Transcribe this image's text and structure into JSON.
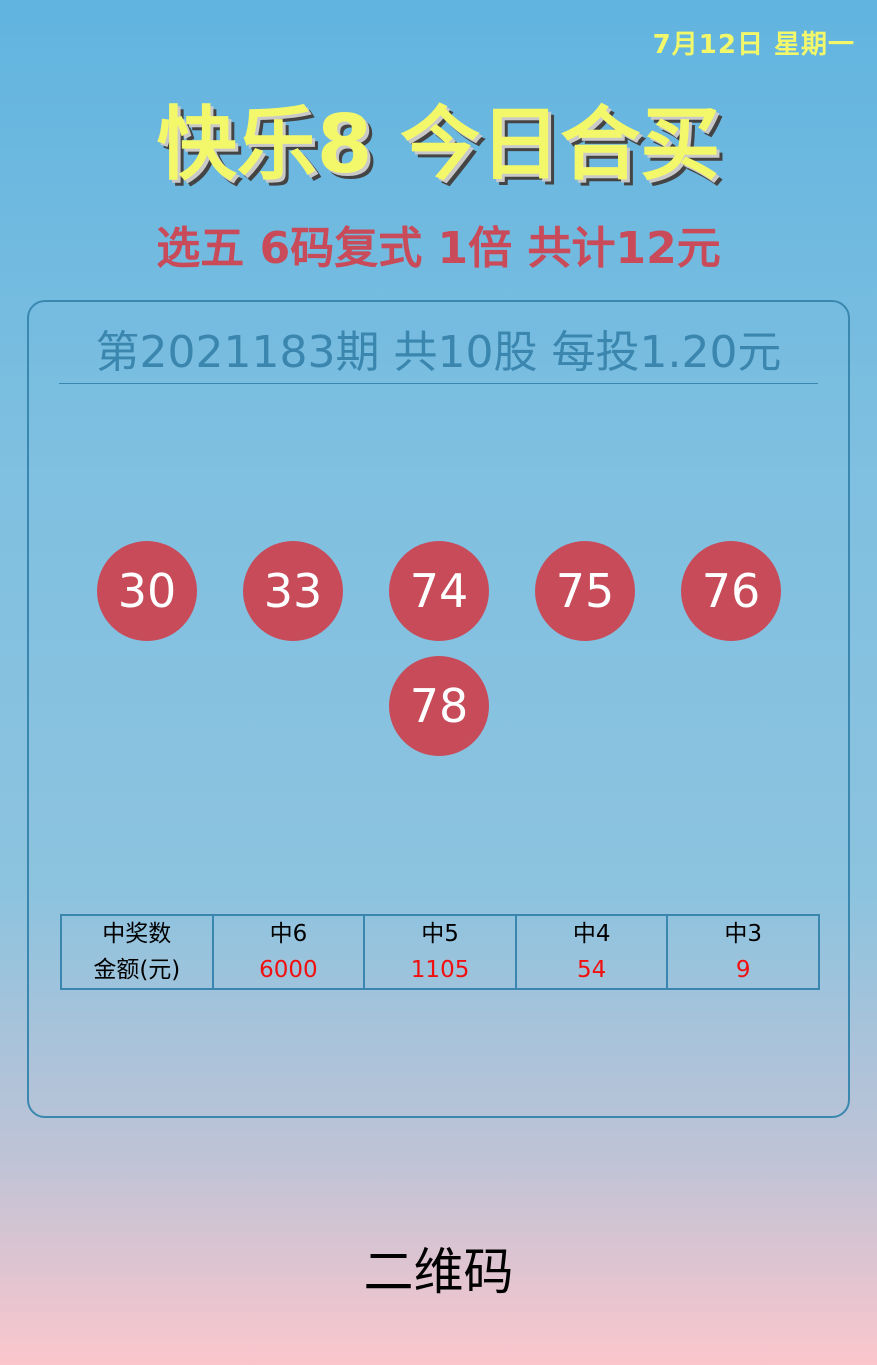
{
  "date": "7月12日 星期一",
  "title": "快乐8 今日合买",
  "subtitle": "选五 6码复式 1倍 共计12元",
  "card": {
    "issue_line": "第2021183期 共10股 每投1.20元",
    "balls": [
      "30",
      "33",
      "74",
      "75",
      "76",
      "78"
    ],
    "ball_color": "#c84b5a",
    "prize_table": {
      "row_header": [
        "中奖数",
        "金额(元)"
      ],
      "columns": [
        {
          "hits": "中6",
          "amount": "6000"
        },
        {
          "hits": "中5",
          "amount": "1105"
        },
        {
          "hits": "中4",
          "amount": "54"
        },
        {
          "hits": "中3",
          "amount": "9"
        }
      ]
    }
  },
  "qr_label": "二维码"
}
